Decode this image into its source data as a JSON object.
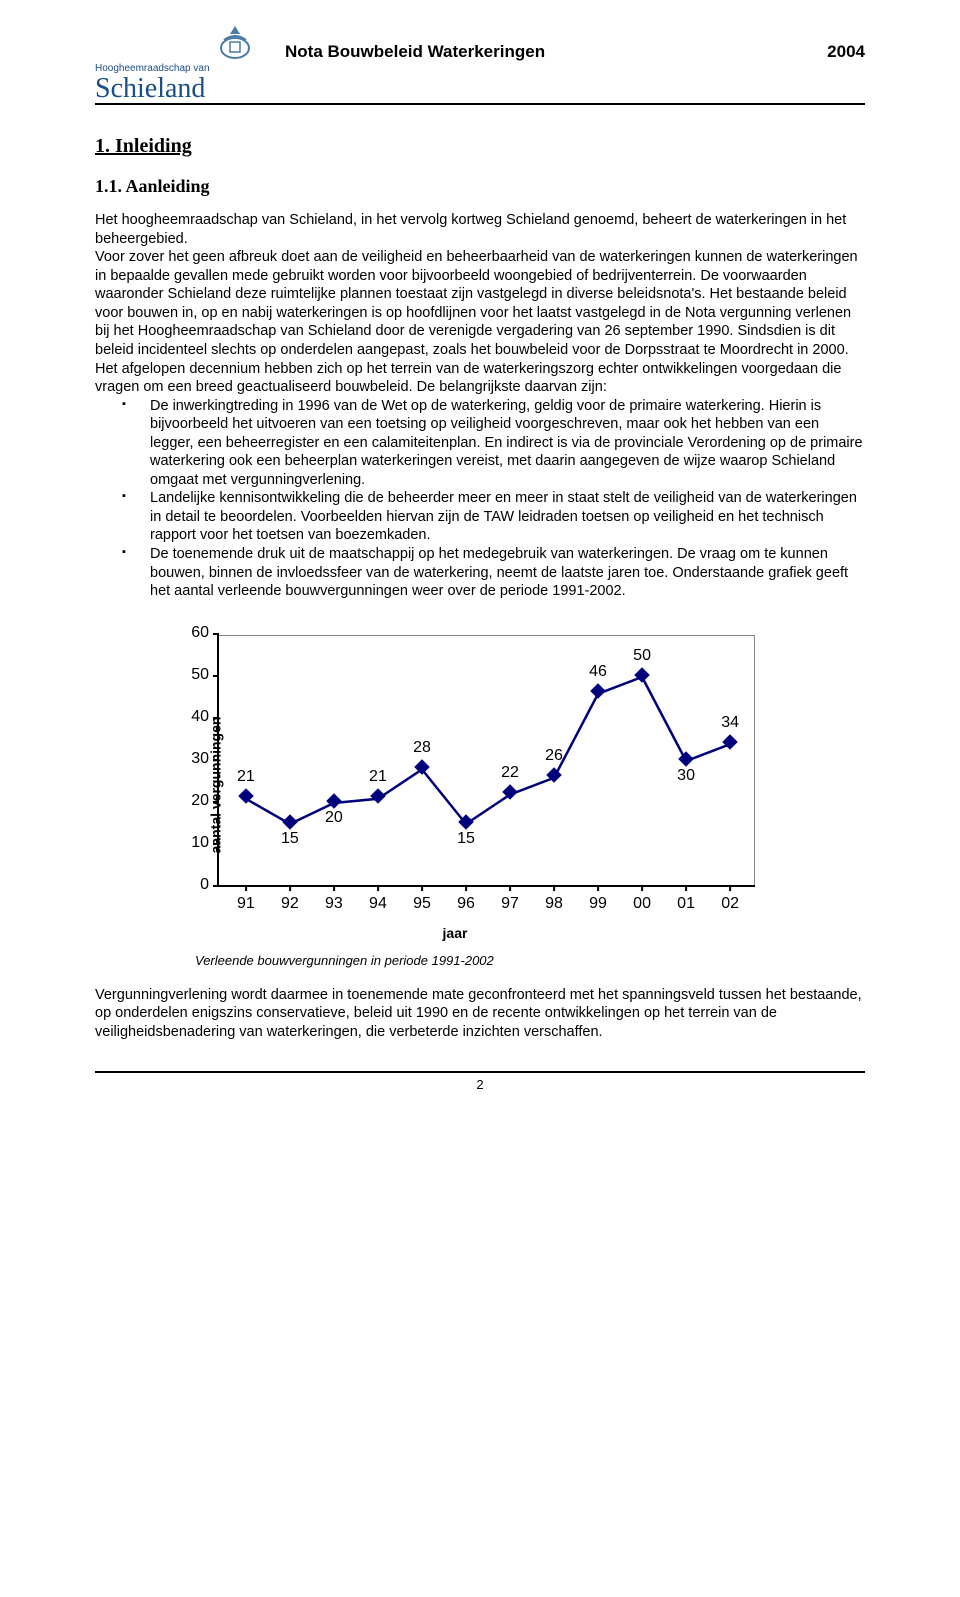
{
  "header": {
    "org_top": "Hoogheemraadschap van",
    "org_name": "Schieland",
    "title": "Nota Bouwbeleid Waterkeringen",
    "year": "2004"
  },
  "section": {
    "num_title": "1.   Inleiding"
  },
  "subsection": {
    "num_title": "1.1.  Aanleiding"
  },
  "body": {
    "p1": "Het hoogheemraadschap van Schieland, in het vervolg kortweg Schieland genoemd, beheert de waterkeringen in het beheergebied.",
    "p1b": "Voor zover het geen afbreuk doet aan de veiligheid en beheerbaarheid van de waterkeringen kunnen de waterkeringen in bepaalde gevallen mede gebruikt worden voor bijvoorbeeld woongebied of bedrijventerrein. De voorwaarden waaronder Schieland deze ruimtelijke plannen toestaat zijn vastgelegd in diverse beleidsnota's. Het bestaande beleid voor bouwen in, op en nabij waterkeringen is op hoofdlijnen voor het laatst vastgelegd in de Nota vergunning verlenen bij het Hoogheemraadschap van Schieland door de verenigde vergadering van 26 september 1990. Sindsdien is dit beleid incidenteel slechts op onderdelen aangepast, zoals het bouwbeleid voor de Dorpsstraat te Moordrecht in 2000.",
    "p2": "Het afgelopen decennium hebben zich op het terrein van de waterkeringszorg echter ontwikkelingen voorgedaan die vragen om een breed geactualiseerd bouwbeleid. De belangrijkste daarvan zijn:",
    "bullets": [
      "De inwerkingtreding in 1996 van de Wet op de waterkering, geldig voor de primaire waterkering. Hierin is bijvoorbeeld het uitvoeren van een toetsing op veiligheid voorgeschreven, maar ook het hebben van een legger, een beheerregister en een calamiteitenplan. En indirect is via de provinciale Verordening op de primaire waterkering ook een beheerplan waterkeringen vereist, met daarin aangegeven de wijze waarop Schieland omgaat met vergunningverlening.",
      "Landelijke kennisontwikkeling die de beheerder meer en meer in staat stelt de veiligheid van de waterkeringen in detail te beoordelen. Voorbeelden hiervan zijn de TAW leidraden toetsen op veiligheid en het technisch rapport voor het toetsen van boezemkaden.",
      "De toenemende druk uit de maatschappij op het medegebruik van waterkeringen. De vraag om te kunnen bouwen, binnen de invloedssfeer van de waterkering, neemt de laatste jaren toe. Onderstaande grafiek geeft het aantal verleende bouwvergunningen weer over de periode 1991-2002."
    ],
    "p3": "Vergunningverlening wordt daarmee in toenemende mate geconfronteerd met het spanningsveld tussen het bestaande, op onderdelen enigszins conservatieve, beleid uit 1990 en de recente ontwikkelingen op het terrein van de veiligheidsbenadering van waterkeringen, die verbeterde inzichten verschaffen."
  },
  "chart": {
    "type": "line",
    "y_label": "aantal vergunningen",
    "x_label": "jaar",
    "ymin": 0,
    "ymax": 60,
    "ytick_step": 10,
    "x_ticks": [
      "91",
      "92",
      "93",
      "94",
      "95",
      "96",
      "97",
      "98",
      "99",
      "00",
      "01",
      "02"
    ],
    "values": [
      21,
      15,
      20,
      21,
      28,
      15,
      22,
      26,
      46,
      50,
      30,
      34
    ],
    "line_color": "#00007d",
    "marker_color": "#00007d",
    "label_positions": [
      "above",
      "below",
      "below",
      "above",
      "above",
      "below",
      "above",
      "above",
      "above",
      "above",
      "below",
      "above"
    ],
    "caption": "Verleende bouwvergunningen in periode 1991-2002"
  },
  "page_number": "2"
}
